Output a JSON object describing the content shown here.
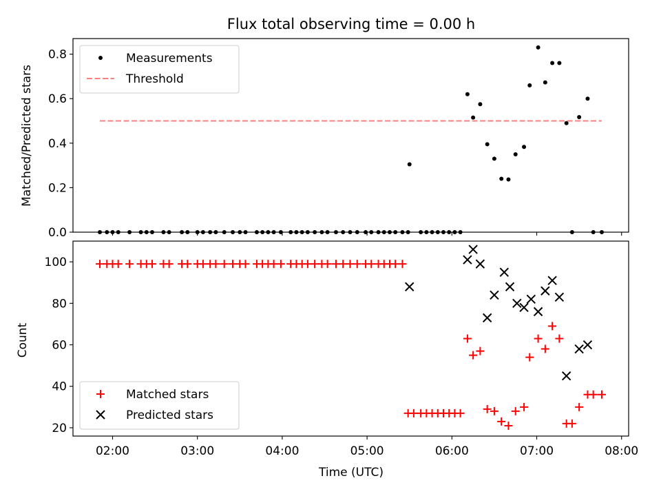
{
  "chart_data": [
    {
      "type": "scatter",
      "title": "Flux total observing time = 0.00 h",
      "ylabel": "Matched/Predicted stars",
      "xlabel": "",
      "xlim": [
        "01:32",
        "08:05"
      ],
      "ylim": [
        0,
        0.87
      ],
      "yticks": [
        0.0,
        0.2,
        0.4,
        0.6,
        0.8
      ],
      "ytick_labels": [
        "0.0",
        "0.2",
        "0.4",
        "0.6",
        "0.8"
      ],
      "xticks": [
        "02:00",
        "03:00",
        "04:00",
        "05:00",
        "06:00",
        "07:00",
        "08:00"
      ],
      "legend_position": "top-left",
      "series": [
        {
          "name": "Measurements",
          "marker": "dot",
          "color": "#000000",
          "points": [
            [
              "01:51",
              0.0
            ],
            [
              "01:56",
              0.0
            ],
            [
              "02:00",
              0.0
            ],
            [
              "02:04",
              0.0
            ],
            [
              "02:12",
              0.0
            ],
            [
              "02:20",
              0.0
            ],
            [
              "02:24",
              0.0
            ],
            [
              "02:28",
              0.0
            ],
            [
              "02:36",
              0.0
            ],
            [
              "02:40",
              0.0
            ],
            [
              "02:49",
              0.0
            ],
            [
              "02:53",
              0.0
            ],
            [
              "03:00",
              0.0
            ],
            [
              "03:04",
              0.0
            ],
            [
              "03:09",
              0.0
            ],
            [
              "03:13",
              0.0
            ],
            [
              "03:19",
              0.0
            ],
            [
              "03:25",
              0.0
            ],
            [
              "03:30",
              0.0
            ],
            [
              "03:34",
              0.0
            ],
            [
              "03:42",
              0.0
            ],
            [
              "03:46",
              0.0
            ],
            [
              "03:50",
              0.0
            ],
            [
              "03:54",
              0.0
            ],
            [
              "03:59",
              0.0
            ],
            [
              "04:06",
              0.0
            ],
            [
              "04:10",
              0.0
            ],
            [
              "04:14",
              0.0
            ],
            [
              "04:18",
              0.0
            ],
            [
              "04:23",
              0.0
            ],
            [
              "04:28",
              0.0
            ],
            [
              "04:32",
              0.0
            ],
            [
              "04:38",
              0.0
            ],
            [
              "04:43",
              0.0
            ],
            [
              "04:48",
              0.0
            ],
            [
              "04:53",
              0.0
            ],
            [
              "04:59",
              0.0
            ],
            [
              "05:03",
              0.0
            ],
            [
              "05:08",
              0.0
            ],
            [
              "05:12",
              0.0
            ],
            [
              "05:16",
              0.0
            ],
            [
              "05:20",
              0.0
            ],
            [
              "05:25",
              0.0
            ],
            [
              "05:29",
              0.0
            ],
            [
              "05:38",
              0.0
            ],
            [
              "05:42",
              0.0
            ],
            [
              "05:46",
              0.0
            ],
            [
              "05:50",
              0.0
            ],
            [
              "05:54",
              0.0
            ],
            [
              "05:58",
              0.0
            ],
            [
              "06:02",
              0.0
            ],
            [
              "06:06",
              0.0
            ],
            [
              "05:30",
              0.305
            ],
            [
              "06:11",
              0.62
            ],
            [
              "06:15",
              0.515
            ],
            [
              "06:20",
              0.575
            ],
            [
              "06:25",
              0.395
            ],
            [
              "06:30",
              0.33
            ],
            [
              "06:35",
              0.24
            ],
            [
              "06:40",
              0.237
            ],
            [
              "06:45",
              0.35
            ],
            [
              "06:51",
              0.383
            ],
            [
              "06:55",
              0.66
            ],
            [
              "07:01",
              0.83
            ],
            [
              "07:06",
              0.673
            ],
            [
              "07:11",
              0.76
            ],
            [
              "07:16",
              0.76
            ],
            [
              "07:21",
              0.49
            ],
            [
              "07:25",
              0.0
            ],
            [
              "07:30",
              0.517
            ],
            [
              "07:36",
              0.6
            ],
            [
              "07:40",
              0.0
            ],
            [
              "07:46",
              0.0
            ]
          ]
        },
        {
          "name": "Threshold",
          "marker": "dashed-line",
          "color": "#ff7f7f",
          "points": [
            [
              "01:51",
              0.5
            ],
            [
              "07:46",
              0.5
            ]
          ]
        }
      ]
    },
    {
      "type": "scatter",
      "title": "",
      "ylabel": "Count",
      "xlabel": "Time (UTC)",
      "xlim": [
        "01:32",
        "08:05"
      ],
      "ylim": [
        16,
        110
      ],
      "yticks": [
        20,
        40,
        60,
        80,
        100
      ],
      "ytick_labels": [
        "20",
        "40",
        "60",
        "80",
        "100"
      ],
      "xticks": [
        "02:00",
        "03:00",
        "04:00",
        "05:00",
        "06:00",
        "07:00",
        "08:00"
      ],
      "xtick_labels": [
        "02:00",
        "03:00",
        "04:00",
        "05:00",
        "06:00",
        "07:00",
        "08:00"
      ],
      "legend_position": "bottom-left",
      "series": [
        {
          "name": "Matched stars",
          "marker": "plus",
          "color": "#ff0000",
          "points": [
            [
              "01:51",
              99
            ],
            [
              "01:56",
              99
            ],
            [
              "02:00",
              99
            ],
            [
              "02:04",
              99
            ],
            [
              "02:12",
              99
            ],
            [
              "02:20",
              99
            ],
            [
              "02:24",
              99
            ],
            [
              "02:28",
              99
            ],
            [
              "02:36",
              99
            ],
            [
              "02:40",
              99
            ],
            [
              "02:49",
              99
            ],
            [
              "02:53",
              99
            ],
            [
              "03:00",
              99
            ],
            [
              "03:04",
              99
            ],
            [
              "03:09",
              99
            ],
            [
              "03:13",
              99
            ],
            [
              "03:19",
              99
            ],
            [
              "03:25",
              99
            ],
            [
              "03:30",
              99
            ],
            [
              "03:34",
              99
            ],
            [
              "03:42",
              99
            ],
            [
              "03:46",
              99
            ],
            [
              "03:50",
              99
            ],
            [
              "03:54",
              99
            ],
            [
              "03:59",
              99
            ],
            [
              "04:06",
              99
            ],
            [
              "04:10",
              99
            ],
            [
              "04:14",
              99
            ],
            [
              "04:18",
              99
            ],
            [
              "04:23",
              99
            ],
            [
              "04:28",
              99
            ],
            [
              "04:32",
              99
            ],
            [
              "04:38",
              99
            ],
            [
              "04:43",
              99
            ],
            [
              "04:48",
              99
            ],
            [
              "04:53",
              99
            ],
            [
              "04:59",
              99
            ],
            [
              "05:03",
              99
            ],
            [
              "05:08",
              99
            ],
            [
              "05:12",
              99
            ],
            [
              "05:16",
              99
            ],
            [
              "05:20",
              99
            ],
            [
              "05:25",
              99
            ],
            [
              "05:29",
              27
            ],
            [
              "05:33",
              27
            ],
            [
              "05:38",
              27
            ],
            [
              "05:42",
              27
            ],
            [
              "05:46",
              27
            ],
            [
              "05:50",
              27
            ],
            [
              "05:54",
              27
            ],
            [
              "05:58",
              27
            ],
            [
              "06:02",
              27
            ],
            [
              "06:06",
              27
            ],
            [
              "06:11",
              63
            ],
            [
              "06:15",
              55
            ],
            [
              "06:20",
              57
            ],
            [
              "06:25",
              29
            ],
            [
              "06:30",
              28
            ],
            [
              "06:35",
              23
            ],
            [
              "06:40",
              21
            ],
            [
              "06:45",
              28
            ],
            [
              "06:51",
              30
            ],
            [
              "06:55",
              54
            ],
            [
              "07:01",
              63
            ],
            [
              "07:06",
              58
            ],
            [
              "07:11",
              69
            ],
            [
              "07:16",
              63
            ],
            [
              "07:21",
              22
            ],
            [
              "07:25",
              22
            ],
            [
              "07:30",
              30
            ],
            [
              "07:36",
              36
            ],
            [
              "07:40",
              36
            ],
            [
              "07:46",
              36
            ]
          ]
        },
        {
          "name": "Predicted stars",
          "marker": "x",
          "color": "#000000",
          "points": [
            [
              "05:30",
              88
            ],
            [
              "06:11",
              101
            ],
            [
              "06:15",
              106
            ],
            [
              "06:20",
              99
            ],
            [
              "06:25",
              73
            ],
            [
              "06:30",
              84
            ],
            [
              "06:37",
              95
            ],
            [
              "06:41",
              88
            ],
            [
              "06:46",
              80
            ],
            [
              "06:51",
              78
            ],
            [
              "06:56",
              82
            ],
            [
              "07:01",
              76
            ],
            [
              "07:06",
              86
            ],
            [
              "07:11",
              91
            ],
            [
              "07:16",
              83
            ],
            [
              "07:21",
              45
            ],
            [
              "07:30",
              58
            ],
            [
              "07:36",
              60
            ]
          ]
        }
      ]
    }
  ]
}
